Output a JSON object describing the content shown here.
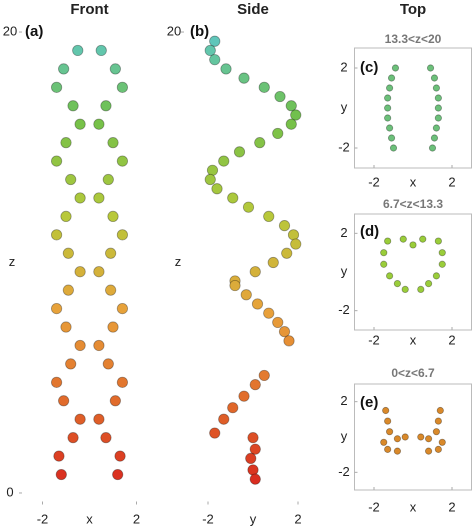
{
  "chart_data": [
    {
      "type": "scatter",
      "title": "Front",
      "panel_label": "(a)",
      "x_label": "x",
      "y_label": "z",
      "xlim": [
        -3,
        3
      ],
      "ylim": [
        -0.5,
        20.5
      ],
      "xticks": [
        -2,
        2
      ],
      "yticks": [
        0,
        20
      ],
      "colormap": [
        "#d7191c",
        "#e0672a",
        "#e8a13a",
        "#b7c93a",
        "#72c04a",
        "#5bc8d8"
      ],
      "series": [
        {
          "x": [
            -1.2,
            -1.3,
            -0.7,
            -0.4,
            -1.1,
            -1.4,
            -0.8,
            -0.4,
            -1.0,
            -1.4,
            -0.9,
            -0.4,
            -0.9,
            -1.4,
            -1.0,
            -0.4,
            -0.8,
            -1.4,
            -1.0,
            -0.4,
            -0.7,
            -1.4,
            -1.1,
            -0.5
          ],
          "values": [
            0.8,
            1.6,
            2.4,
            3.2,
            4.0,
            4.8,
            5.6,
            6.4,
            7.2,
            8.0,
            8.8,
            9.6,
            10.4,
            11.2,
            12.0,
            12.8,
            13.6,
            14.4,
            15.2,
            16.0,
            16.8,
            17.6,
            18.4,
            19.2
          ]
        },
        {
          "x": [
            1.2,
            1.3,
            0.7,
            0.4,
            1.1,
            1.4,
            0.8,
            0.4,
            1.0,
            1.4,
            0.9,
            0.4,
            0.9,
            1.4,
            1.0,
            0.4,
            0.8,
            1.4,
            1.0,
            0.4,
            0.7,
            1.4,
            1.1,
            0.5
          ],
          "values": [
            0.8,
            1.6,
            2.4,
            3.2,
            4.0,
            4.8,
            5.6,
            6.4,
            7.2,
            8.0,
            8.8,
            9.6,
            10.4,
            11.2,
            12.0,
            12.8,
            13.6,
            14.4,
            15.2,
            16.0,
            16.8,
            17.6,
            18.4,
            19.2
          ]
        }
      ]
    },
    {
      "type": "scatter",
      "title": "Side",
      "panel_label": "(b)",
      "x_label": "y",
      "y_label": "z",
      "xlim": [
        -3.2,
        3.2
      ],
      "ylim": [
        -0.5,
        20.5
      ],
      "xticks": [
        -2,
        2
      ],
      "yticks": [
        20
      ],
      "colormap": [
        "#d7191c",
        "#e0672a",
        "#e8a13a",
        "#b7c93a",
        "#72c04a",
        "#5bc8d8"
      ],
      "series": [
        {
          "x": [
            -1.7,
            -1.9,
            -1.7,
            -1.2,
            -0.4,
            0.5,
            1.2,
            1.7,
            1.9,
            1.7,
            1.1,
            0.3,
            -0.6,
            -1.3,
            -1.8,
            -1.9,
            -1.6,
            -0.9,
            -0.2,
            0.7,
            1.4,
            1.8,
            1.9,
            1.5,
            0.9,
            0.1,
            -0.8
          ],
          "values": [
            19.6,
            19.2,
            18.8,
            18.4,
            18.0,
            17.6,
            17.2,
            16.8,
            16.4,
            16.0,
            15.6,
            15.2,
            14.8,
            14.4,
            14.0,
            13.6,
            13.2,
            12.8,
            12.4,
            12.0,
            11.6,
            11.2,
            10.8,
            10.4,
            10.0,
            9.6,
            9.2
          ]
        },
        {
          "x": [
            -0.8,
            -0.3,
            0.2,
            0.7,
            1.1,
            1.4,
            1.6,
            0.5,
            0.1,
            -0.4,
            -0.9,
            -1.3,
            -1.7,
            0.0,
            0.1,
            -0.1,
            0.0,
            0.1
          ],
          "values": [
            9.0,
            8.6,
            8.2,
            7.8,
            7.4,
            7.0,
            6.6,
            5.1,
            4.7,
            4.2,
            3.7,
            3.2,
            2.6,
            2.4,
            1.9,
            1.5,
            1.0,
            0.6
          ]
        }
      ]
    },
    {
      "type": "scatter",
      "column_title": "Top",
      "title": "13.3<z<20",
      "panel_label": "(c)",
      "x_label": "x",
      "y_label": "y",
      "xlim": [
        -3,
        3
      ],
      "ylim": [
        -3,
        3
      ],
      "xticks": [
        -2,
        2
      ],
      "yticks": [
        -2,
        2
      ],
      "color": "#6cc07a",
      "series": [
        {
          "x": [
            -0.9,
            -1.1,
            -1.2,
            -1.3,
            -1.3,
            -1.3,
            -1.2,
            -1.1,
            -1.0,
            0.9,
            1.1,
            1.2,
            1.3,
            1.3,
            1.3,
            1.2,
            1.1,
            1.0
          ],
          "values": [
            2,
            1.5,
            1,
            0.5,
            0,
            -0.5,
            -1,
            -1.5,
            -2,
            2,
            1.5,
            1,
            0.5,
            0,
            -0.5,
            -1,
            -1.5,
            -2
          ]
        }
      ]
    },
    {
      "type": "scatter",
      "title": "6.7<z<13.3",
      "panel_label": "(d)",
      "x_label": "x",
      "y_label": "y",
      "xlim": [
        -3,
        3
      ],
      "ylim": [
        -3,
        3
      ],
      "xticks": [
        -2,
        2
      ],
      "yticks": [
        -2,
        2
      ],
      "color": "#9acd3a",
      "series": [
        {
          "x": [
            -1.3,
            -1.5,
            -1.5,
            -1.2,
            -0.8,
            -0.4,
            1.3,
            1.5,
            1.5,
            1.2,
            0.8,
            0.4,
            0,
            0.5,
            -0.5
          ],
          "values": [
            1.6,
            1.0,
            0.4,
            -0.2,
            -0.6,
            -0.9,
            1.6,
            1.0,
            0.4,
            -0.2,
            -0.6,
            -0.9,
            1.4,
            1.7,
            1.7
          ]
        }
      ]
    },
    {
      "type": "scatter",
      "title": "0<z<6.7",
      "panel_label": "(e)",
      "x_label": "x",
      "y_label": "y",
      "xlim": [
        -3,
        3
      ],
      "ylim": [
        -3,
        3
      ],
      "xticks": [
        -2,
        2
      ],
      "yticks": [
        -2,
        2
      ],
      "color": "#d9892a",
      "series": [
        {
          "x": [
            -1.4,
            -1.3,
            -1.2,
            -0.8,
            -0.4,
            -1.5,
            -1.3,
            -0.8,
            1.4,
            1.3,
            1.2,
            0.8,
            0.4,
            1.5,
            1.3,
            0.8
          ],
          "values": [
            1.5,
            0.9,
            0.3,
            -0.1,
            0,
            -0.3,
            -0.7,
            -0.8,
            1.5,
            0.9,
            0.3,
            -0.1,
            0,
            -0.3,
            -0.7,
            -0.8
          ]
        }
      ]
    }
  ]
}
